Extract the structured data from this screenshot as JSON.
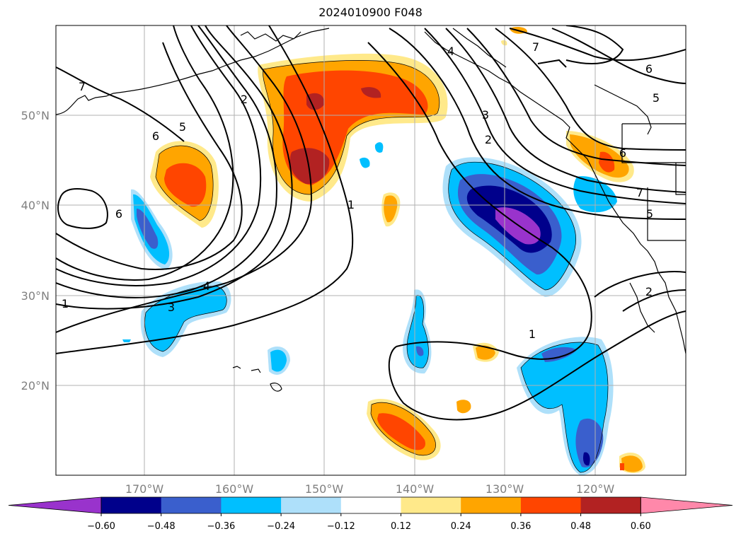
{
  "title": "2024010900 F048",
  "map": {
    "lat_labels": [
      "50°N",
      "40°N",
      "30°N",
      "20°N"
    ],
    "lon_labels": [
      "170°W",
      "160°W",
      "150°W",
      "140°W",
      "130°W",
      "120°W"
    ],
    "contour_labels": [
      "1",
      "2",
      "3",
      "4",
      "5",
      "6",
      "7"
    ]
  },
  "colorbar": {
    "ticks": [
      "−0.60",
      "−0.48",
      "−0.36",
      "−0.24",
      "−0.12",
      "0.12",
      "0.24",
      "0.36",
      "0.48",
      "0.60"
    ],
    "colors": [
      "#9933cc",
      "#00008b",
      "#3a5fcd",
      "#00bfff",
      "#aee0fa",
      "#ffffff",
      "#ffe98a",
      "#ffa500",
      "#ff4500",
      "#b22222",
      "#ff88aa"
    ]
  }
}
